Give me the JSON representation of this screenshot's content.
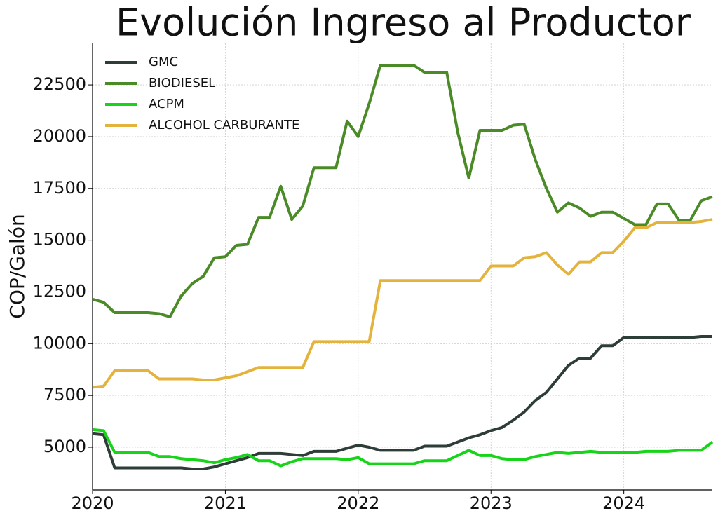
{
  "chart_data": {
    "type": "line",
    "title": "Evolución Ingreso al Productor",
    "y_label": "COP/Galón",
    "x": [
      2020,
      2020.083,
      2020.167,
      2020.25,
      2020.333,
      2020.417,
      2020.5,
      2020.583,
      2020.667,
      2020.75,
      2020.833,
      2020.917,
      2021,
      2021.083,
      2021.167,
      2021.25,
      2021.333,
      2021.417,
      2021.5,
      2021.583,
      2021.667,
      2021.75,
      2021.833,
      2021.917,
      2022,
      2022.083,
      2022.167,
      2022.25,
      2022.333,
      2022.417,
      2022.5,
      2022.583,
      2022.667,
      2022.75,
      2022.833,
      2022.917,
      2023,
      2023.083,
      2023.167,
      2023.25,
      2023.333,
      2023.417,
      2023.5,
      2023.583,
      2023.667,
      2023.75,
      2023.833,
      2023.917,
      2024,
      2024.083,
      2024.167,
      2024.25,
      2024.333,
      2024.417,
      2024.5,
      2024.583,
      2024.667
    ],
    "series": [
      {
        "name": "GMC",
        "color": "#2e3d38",
        "values": [
          5650,
          5600,
          4000,
          4000,
          4000,
          4000,
          4000,
          4000,
          4000,
          3950,
          3950,
          4050,
          4200,
          4350,
          4500,
          4700,
          4700,
          4700,
          4650,
          4600,
          4800,
          4800,
          4800,
          4950,
          5100,
          5000,
          4850,
          4850,
          4850,
          4850,
          5050,
          5050,
          5050,
          5250,
          5450,
          5600,
          5800,
          5950,
          6300,
          6700,
          7250,
          7650,
          8300,
          8950,
          9300,
          9300,
          9900,
          9900,
          10300,
          10300,
          10300,
          10300,
          10300,
          10300,
          10300,
          10350,
          10350
        ]
      },
      {
        "name": "BIODIESEL",
        "color": "#4b8b27",
        "values": [
          12150,
          12000,
          11500,
          11500,
          11500,
          11500,
          11450,
          11300,
          12300,
          12900,
          13250,
          14150,
          14200,
          14750,
          14800,
          16100,
          16100,
          17600,
          16000,
          16650,
          18500,
          18500,
          18500,
          20750,
          20000,
          21600,
          23450,
          23450,
          23450,
          23450,
          23100,
          23100,
          23100,
          20200,
          18000,
          20300,
          20300,
          20300,
          20550,
          20600,
          18900,
          17500,
          16350,
          16800,
          16550,
          16150,
          16350,
          16350,
          16050,
          15750,
          15750,
          16750,
          16750,
          15950,
          15950,
          16900,
          17100
        ]
      },
      {
        "name": "ACPM",
        "color": "#17d41a",
        "values": [
          5850,
          5800,
          4750,
          4750,
          4750,
          4750,
          4550,
          4550,
          4450,
          4400,
          4350,
          4250,
          4400,
          4500,
          4650,
          4350,
          4350,
          4100,
          4300,
          4450,
          4450,
          4450,
          4450,
          4400,
          4500,
          4200,
          4200,
          4200,
          4200,
          4200,
          4350,
          4350,
          4350,
          4600,
          4850,
          4600,
          4600,
          4450,
          4400,
          4400,
          4550,
          4650,
          4750,
          4700,
          4750,
          4800,
          4750,
          4750,
          4750,
          4750,
          4800,
          4800,
          4800,
          4850,
          4850,
          4850,
          5250
        ]
      },
      {
        "name": "ALCOHOL CARBURANTE",
        "color": "#e3b33d",
        "values": [
          7900,
          7950,
          8700,
          8700,
          8700,
          8700,
          8300,
          8300,
          8300,
          8300,
          8250,
          8250,
          8350,
          8450,
          8650,
          8850,
          8850,
          8850,
          8850,
          8850,
          10100,
          10100,
          10100,
          10100,
          10100,
          10100,
          13050,
          13050,
          13050,
          13050,
          13050,
          13050,
          13050,
          13050,
          13050,
          13050,
          13750,
          13750,
          13750,
          14150,
          14200,
          14400,
          13800,
          13350,
          13950,
          13950,
          14400,
          14400,
          14950,
          15600,
          15600,
          15850,
          15850,
          15850,
          15850,
          15900,
          16000
        ]
      }
    ],
    "xlim": [
      2020,
      2024.667
    ],
    "xticks": [
      2020,
      2021,
      2022,
      2023,
      2024
    ],
    "ylim": [
      2935,
      24500
    ],
    "yticks": [
      5000,
      7500,
      10000,
      12500,
      15000,
      17500,
      20000,
      22500
    ],
    "grid": true,
    "legend": "upper left"
  }
}
